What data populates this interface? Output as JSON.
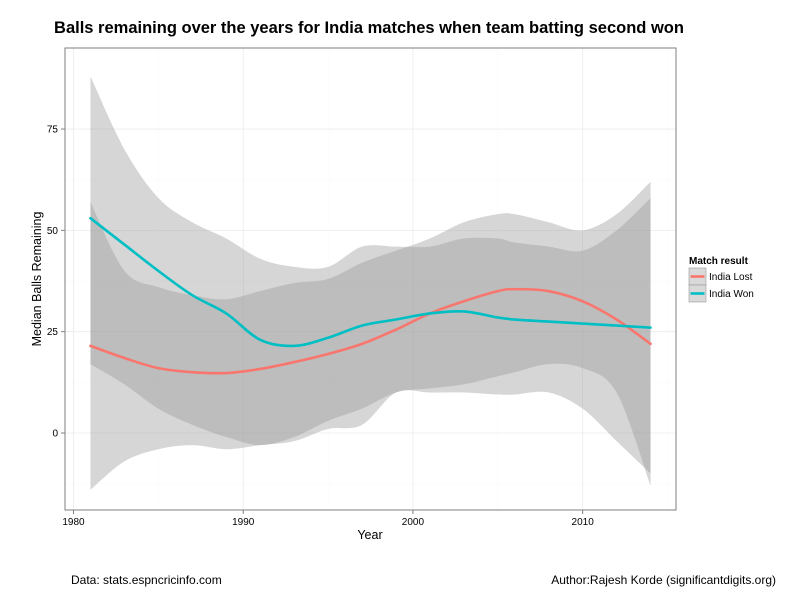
{
  "chart_data": {
    "type": "line",
    "title": "Balls remaining over the years for India matches when team batting second won",
    "xlabel": "Year",
    "ylabel": "Median Balls Remaining",
    "xlim": [
      1979.5,
      2015.5
    ],
    "ylim": [
      -19,
      95
    ],
    "x_ticks": [
      1980,
      1990,
      2000,
      2010
    ],
    "y_ticks": [
      0,
      25,
      50,
      75
    ],
    "grid": true,
    "legend": {
      "title": "Match result",
      "position": "right"
    },
    "series": [
      {
        "name": "India Lost",
        "color": "#F8766D",
        "x": [
          1981,
          1983,
          1985,
          1987,
          1989,
          1991,
          1993,
          1995,
          1997,
          1999,
          2001,
          2003,
          2005,
          2006,
          2008,
          2010,
          2012,
          2014
        ],
        "values": [
          21.5,
          18.5,
          16,
          15,
          14.8,
          15.8,
          17.5,
          19.5,
          22,
          25.5,
          29.5,
          32.5,
          35,
          35.5,
          35,
          32.5,
          28,
          22
        ],
        "ci_lower": [
          17,
          12,
          6,
          2,
          -1,
          -3,
          -1,
          3,
          6,
          10,
          11,
          12,
          14,
          15,
          17,
          16,
          10,
          -13
        ],
        "ci_upper": [
          57,
          40,
          36,
          34,
          33,
          35,
          37,
          38,
          42,
          45,
          48,
          52,
          54,
          54,
          52,
          50,
          54,
          62
        ]
      },
      {
        "name": "India Won",
        "color": "#00BFC4",
        "x": [
          1981,
          1983,
          1985,
          1987,
          1989,
          1991,
          1993,
          1995,
          1997,
          1999,
          2001,
          2003,
          2005,
          2006,
          2008,
          2010,
          2012,
          2014
        ],
        "values": [
          53,
          46.5,
          40,
          34,
          29.5,
          23,
          21.5,
          23.5,
          26.5,
          28,
          29.5,
          30,
          28.5,
          28,
          27.5,
          27,
          26.5,
          26
        ],
        "ci_lower": [
          -14,
          -7,
          -4,
          -3,
          -4,
          -3,
          -2,
          1,
          2,
          10,
          10,
          10,
          9.5,
          9.5,
          10,
          6,
          -2,
          -10
        ],
        "ci_upper": [
          88,
          70,
          58,
          52,
          48,
          43,
          41,
          41,
          46,
          46,
          46,
          48,
          48,
          47,
          46,
          45,
          50,
          58
        ]
      }
    ]
  },
  "footer": {
    "source": "Data: stats.espncricinfo.com",
    "author": "Author:Rajesh Korde (significantdigits.org)"
  }
}
